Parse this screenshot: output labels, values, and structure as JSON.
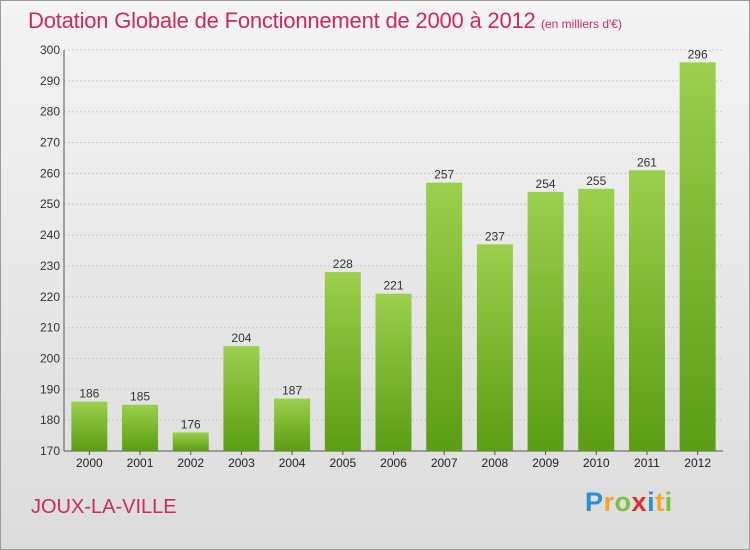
{
  "title": "Dotation Globale de Fonctionnement de 2000 à 2012",
  "subtitle": "(en milliers d'€)",
  "town": "JOUX-LA-VILLE",
  "logo": {
    "letters": [
      "P",
      "r",
      "o",
      "x",
      "i",
      "t",
      "i"
    ],
    "colors": [
      "#2a8fd4",
      "#f5a623",
      "#7cc242",
      "#e03030",
      "#2a8fd4",
      "#f5a623",
      "#7cc242"
    ]
  },
  "colors": {
    "accent": "#cc2a5a",
    "bar_top": "#9ccf4d",
    "bar_bottom": "#5b9d14",
    "grid": "#c8c8c8"
  },
  "chart_data": {
    "type": "bar",
    "title": "Dotation Globale de Fonctionnement de 2000 à 2012",
    "subtitle": "(en milliers d'€)",
    "categories": [
      "2000",
      "2001",
      "2002",
      "2003",
      "2004",
      "2005",
      "2006",
      "2007",
      "2008",
      "2009",
      "2010",
      "2011",
      "2012"
    ],
    "values": [
      186,
      185,
      176,
      204,
      187,
      228,
      221,
      257,
      237,
      254,
      255,
      261,
      296
    ],
    "ylim": [
      170,
      300
    ],
    "yticks": [
      170,
      180,
      190,
      200,
      210,
      220,
      230,
      240,
      250,
      260,
      270,
      280,
      290,
      300
    ],
    "grid": true,
    "data_labels": true
  }
}
